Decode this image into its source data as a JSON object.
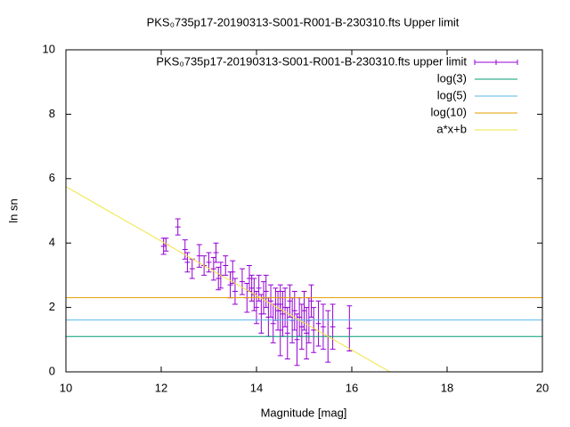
{
  "chart_data": {
    "type": "errorbar",
    "title": "PKS₀735p17-20190313-S001-R001-B-230310.fts Upper limit",
    "xlabel": "Magnitude [mag]",
    "ylabel": "ln sn",
    "xlim": [
      10,
      20
    ],
    "xticks": [
      10,
      12,
      14,
      16,
      18,
      20
    ],
    "ylim": [
      0,
      10
    ],
    "yticks": [
      0,
      2,
      4,
      6,
      8,
      10
    ],
    "legend": "top right",
    "series": [
      {
        "name": "PKS₀735p17-20190313-S001-R001-B-230310.fts upper limit",
        "color": "#9400d3",
        "x": [
          12.05,
          12.1,
          12.35,
          12.5,
          12.55,
          12.65,
          12.8,
          12.9,
          13.0,
          13.1,
          13.15,
          13.2,
          13.25,
          13.35,
          13.45,
          13.5,
          13.55,
          13.7,
          13.8,
          13.85,
          13.9,
          13.95,
          14.0,
          14.05,
          14.1,
          14.15,
          14.2,
          14.25,
          14.3,
          14.35,
          14.4,
          14.45,
          14.5,
          14.5,
          14.55,
          14.6,
          14.65,
          14.7,
          14.75,
          14.8,
          14.85,
          14.9,
          14.95,
          15.0,
          15.05,
          15.1,
          15.15,
          15.2,
          15.3,
          15.4,
          15.5,
          15.6,
          15.95
        ],
        "values": [
          3.9,
          3.95,
          4.5,
          3.8,
          3.4,
          3.2,
          3.6,
          3.3,
          3.4,
          3.2,
          3.7,
          2.9,
          3.0,
          3.3,
          2.7,
          3.1,
          2.5,
          2.8,
          2.3,
          2.9,
          2.6,
          2.4,
          2.0,
          2.6,
          1.8,
          2.3,
          2.5,
          1.7,
          2.2,
          1.5,
          2.1,
          1.9,
          1.3,
          2.3,
          1.8,
          2.0,
          1.2,
          2.2,
          1.6,
          1.9,
          1.0,
          1.7,
          1.4,
          1.9,
          1.2,
          1.6,
          2.2,
          1.3,
          1.5,
          1.4,
          1.1,
          1.4,
          1.35
        ],
        "errors": [
          0.25,
          0.2,
          0.25,
          0.3,
          0.3,
          0.3,
          0.35,
          0.3,
          0.3,
          0.35,
          0.3,
          0.35,
          0.4,
          0.3,
          0.4,
          0.35,
          0.4,
          0.4,
          0.45,
          0.4,
          0.4,
          0.5,
          0.5,
          0.4,
          0.6,
          0.5,
          0.5,
          0.6,
          0.5,
          0.6,
          0.5,
          0.6,
          0.8,
          0.4,
          0.7,
          0.6,
          0.8,
          0.5,
          0.7,
          0.6,
          0.8,
          0.6,
          0.7,
          0.6,
          0.8,
          0.7,
          0.5,
          0.7,
          0.7,
          0.7,
          0.8,
          0.7,
          0.7
        ]
      },
      {
        "name": "log(3)",
        "color": "#009e73",
        "value": 1.0986
      },
      {
        "name": "log(5)",
        "color": "#56b4e9",
        "value": 1.6094
      },
      {
        "name": "log(10)",
        "color": "#e69f00",
        "value": 2.3026
      },
      {
        "name": "a*x+b",
        "color": "#f0e442",
        "x": [
          10,
          16.8
        ],
        "values": [
          5.75,
          0
        ]
      }
    ]
  }
}
